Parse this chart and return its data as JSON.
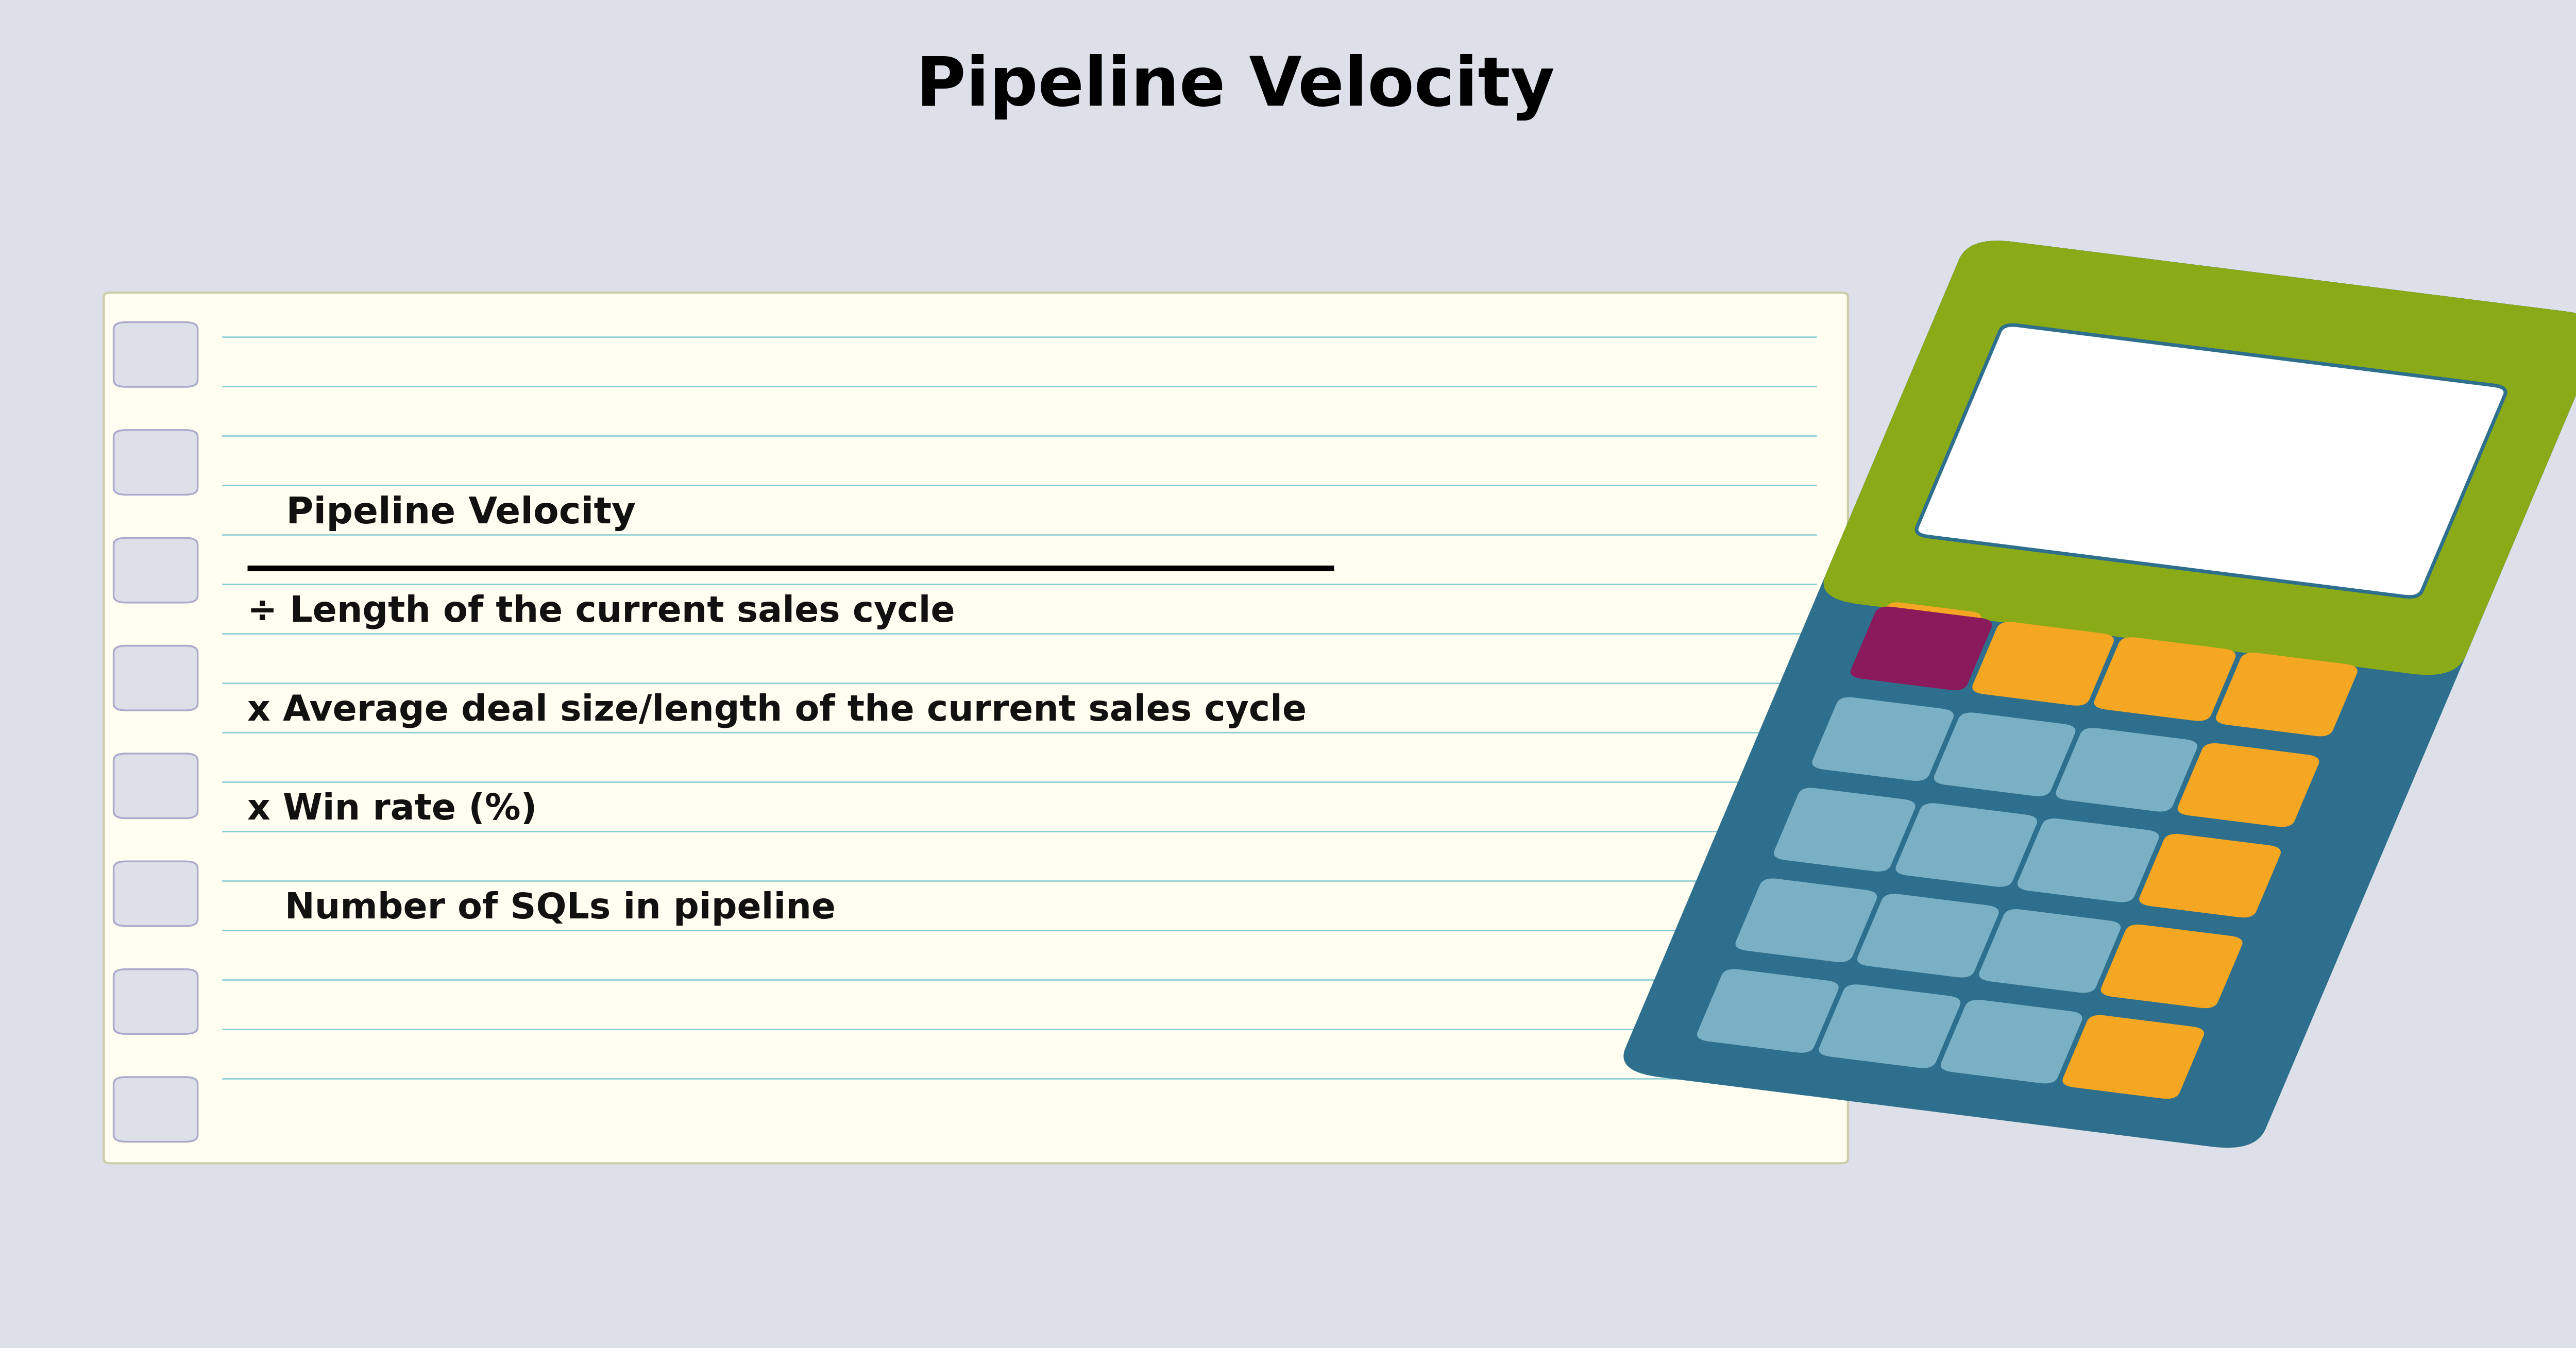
{
  "title": "Pipeline Velocity",
  "title_fontsize": 95,
  "background_color": "#dde0e8",
  "notepad_color": "#fffef0",
  "notepad_line_color": "#6bbfcc",
  "formula_lines": [
    "   Number of SQLs in pipeline",
    "x Win rate (%)",
    "x Average deal size/length of the current sales cycle",
    "÷ Length of the current sales cycle"
  ],
  "result_line": "   Pipeline Velocity",
  "formula_fontsize": 50,
  "result_fontsize": 52,
  "calc_body_color": "#2d6f8c",
  "calc_top_color": "#8aaa18",
  "calc_screen_color": "#ffffff",
  "calc_screen_border": "#2d6f8c",
  "calc_btn_orange": "#f5a623",
  "calc_btn_blue": "#7ab0c5",
  "calc_btn_purple": "#8b1a5c",
  "line_color": "#000000",
  "notepad_edge_color": "#ccccaa"
}
